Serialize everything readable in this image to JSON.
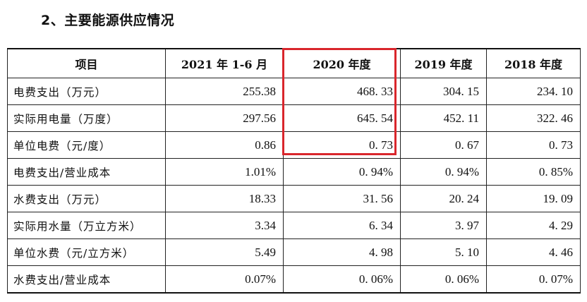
{
  "section_title": "2、主要能源供应情况",
  "table": {
    "headers": [
      "项目",
      "2021 年 1-6 月",
      "2020 年度",
      "2019 年度",
      "2018 年度"
    ],
    "rows": [
      {
        "label": "电费支出（万元）",
        "values": [
          "255.38",
          "468. 33",
          "304. 15",
          "234. 10"
        ]
      },
      {
        "label": "实际用电量（万度）",
        "values": [
          "297.56",
          "645. 54",
          "452. 11",
          "322. 46"
        ]
      },
      {
        "label": "单位电费（元/度）",
        "values": [
          "0.86",
          "0. 73",
          "0. 67",
          "0. 73"
        ]
      },
      {
        "label": "电费支出/营业成本",
        "values": [
          "1.01%",
          "0. 94%",
          "0. 94%",
          "0. 85%"
        ]
      },
      {
        "label": "水费支出（万元）",
        "values": [
          "18.33",
          "31. 56",
          "20. 24",
          "19. 09"
        ]
      },
      {
        "label": "实际用水量（万立方米）",
        "values": [
          "3.34",
          "6. 34",
          "3. 97",
          "4. 29"
        ]
      },
      {
        "label": "单位水费（元/立方米）",
        "values": [
          "5.49",
          "4. 98",
          "5. 10",
          "4. 46"
        ]
      },
      {
        "label": "水费支出/营业成本",
        "values": [
          "0.07%",
          "0. 06%",
          "0. 06%",
          "0. 07%"
        ]
      }
    ]
  },
  "highlight": {
    "column": "2020 年度",
    "rows_covered": 4,
    "color": "#d9262c"
  }
}
